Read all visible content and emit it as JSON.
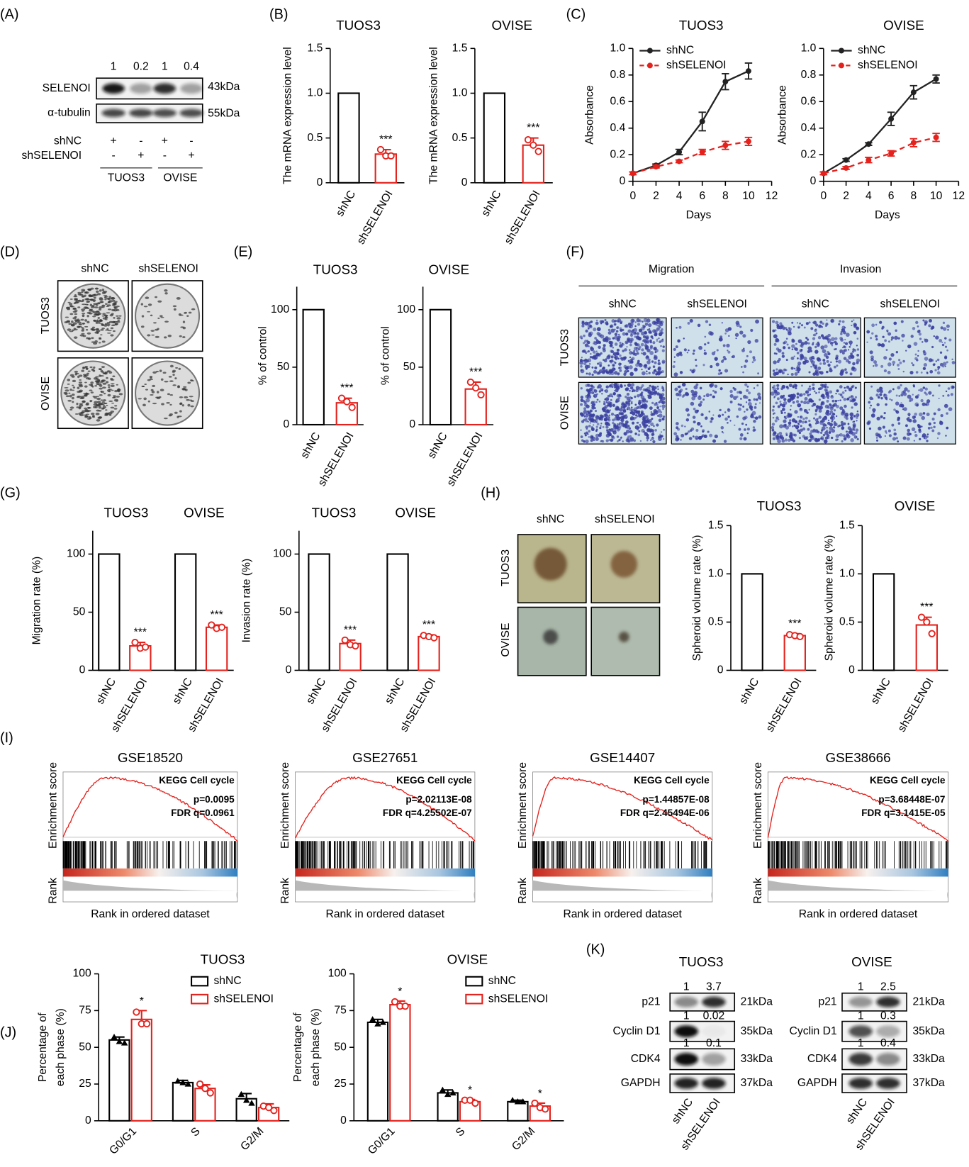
{
  "panel_a": {
    "label": "(A)",
    "quant": [
      1,
      0.2,
      1,
      0.4
    ],
    "proteins": [
      "SELENOI",
      "α-tubulin"
    ],
    "sizes": [
      "43kDa",
      "55kDa"
    ],
    "conditions": [
      {
        "name": "shNC",
        "signs": [
          "+",
          "-",
          "+",
          "-"
        ]
      },
      {
        "name": "shSELENOI",
        "signs": [
          "-",
          "+",
          "-",
          "+"
        ]
      }
    ],
    "cell_lines": [
      "TUOS3",
      "OVISE"
    ]
  },
  "panel_b": {
    "label": "(B)",
    "charts": [
      {
        "title": "TUOS3",
        "ylabel": "The mRNA expression level",
        "categories": [
          "shNC",
          "shSELENOI"
        ],
        "values": [
          1,
          0.32
        ],
        "errors": [
          null,
          0.05
        ],
        "points": [
          null,
          [
            0.37,
            0.3,
            0.3
          ]
        ],
        "colors": [
          "#000000",
          "#e4211c"
        ],
        "stars": [
          null,
          "***"
        ],
        "ylim": [
          0,
          1.5
        ],
        "yticks": [
          0,
          0.5,
          {
            "value": 1,
            "label": "1.0"
          },
          1.5
        ]
      },
      {
        "title": "OVISE",
        "ylabel": "The mRNA expression level",
        "categories": [
          "shNC",
          "shSELENOI"
        ],
        "values": [
          1,
          0.42
        ],
        "errors": [
          null,
          0.08
        ],
        "points": [
          null,
          [
            0.48,
            0.42,
            0.35
          ]
        ],
        "colors": [
          "#000000",
          "#e4211c"
        ],
        "stars": [
          null,
          "***"
        ],
        "ylim": [
          0,
          1.5
        ],
        "yticks": [
          0,
          0.5,
          {
            "value": 1,
            "label": "1.0"
          },
          1.5
        ]
      }
    ]
  },
  "panel_c": {
    "label": "(C)",
    "charts": [
      {
        "type": "line",
        "title": "TUOS3",
        "xlabel": "Days",
        "ylabel": "Absorbance",
        "x": [
          0,
          2,
          4,
          6,
          8,
          10
        ],
        "series": [
          {
            "name": "shNC",
            "color": "#222222",
            "dash": false,
            "values": [
              0.06,
              0.12,
              0.22,
              0.45,
              0.75,
              0.83
            ],
            "errors": [
              0.01,
              0.01,
              0.02,
              0.07,
              0.06,
              0.06
            ]
          },
          {
            "name": "shSELENOI",
            "color": "#e4211c",
            "dash": true,
            "values": [
              0.06,
              0.11,
              0.15,
              0.22,
              0.27,
              0.3
            ],
            "errors": [
              0.01,
              0.01,
              0.01,
              0.02,
              0.03,
              0.03
            ]
          }
        ],
        "xlim": [
          0,
          12
        ],
        "xticks": [
          0,
          2,
          4,
          6,
          8,
          10,
          12
        ],
        "ylim": [
          0,
          1
        ],
        "yticks": [
          0,
          0.2,
          0.4,
          0.6,
          0.8,
          {
            "value": 1,
            "label": "1.0"
          }
        ]
      },
      {
        "type": "line",
        "title": "OVISE",
        "xlabel": "Days",
        "ylabel": "Absorbance",
        "x": [
          0,
          2,
          4,
          6,
          8,
          10
        ],
        "series": [
          {
            "name": "shNC",
            "color": "#222222",
            "dash": false,
            "values": [
              0.06,
              0.16,
              0.28,
              0.47,
              0.67,
              0.77
            ],
            "errors": [
              0.01,
              0.01,
              0.01,
              0.05,
              0.05,
              0.03
            ]
          },
          {
            "name": "shSELENOI",
            "color": "#e4211c",
            "dash": true,
            "values": [
              0.06,
              0.1,
              0.16,
              0.21,
              0.29,
              0.33
            ],
            "errors": [
              0.01,
              0.01,
              0.02,
              0.02,
              0.03,
              0.03
            ]
          }
        ],
        "xlim": [
          0,
          12
        ],
        "xticks": [
          0,
          2,
          4,
          6,
          8,
          10,
          12
        ],
        "ylim": [
          0,
          1
        ],
        "yticks": [
          0,
          0.2,
          0.4,
          0.6,
          0.8,
          {
            "value": 1,
            "label": "1.0"
          }
        ]
      }
    ]
  },
  "panel_d": {
    "label": "(D)",
    "columns": [
      "shNC",
      "shSELENOI"
    ],
    "rows": [
      "TUOS3",
      "OVISE"
    ]
  },
  "panel_e": {
    "label": "(E)",
    "charts": [
      {
        "title": "TUOS3",
        "ylabel": "% of control",
        "categories": [
          "shNC",
          "shSELENOI"
        ],
        "values": [
          100,
          19
        ],
        "errors": [
          null,
          4
        ],
        "points": [
          null,
          [
            23,
            20,
            15
          ]
        ],
        "colors": [
          "#000000",
          "#e4211c"
        ],
        "stars": [
          null,
          "***"
        ],
        "ylim": [
          0,
          120
        ],
        "yticks": [
          0,
          50,
          100
        ]
      },
      {
        "title": "OVISE",
        "ylabel": "% of control",
        "categories": [
          "shNC",
          "shSELENOI"
        ],
        "values": [
          100,
          31
        ],
        "errors": [
          null,
          6
        ],
        "points": [
          null,
          [
            37,
            32,
            26
          ]
        ],
        "colors": [
          "#000000",
          "#e4211c"
        ],
        "stars": [
          null,
          "***"
        ],
        "ylim": [
          0,
          120
        ],
        "yticks": [
          0,
          50,
          100
        ]
      }
    ]
  },
  "panel_f": {
    "label": "(F)",
    "assays": [
      "Migration",
      "Invasion"
    ],
    "columns": [
      "shNC",
      "shSELENOI",
      "shNC",
      "shSELENOI"
    ],
    "rows": [
      "TUOS3",
      "OVISE"
    ]
  },
  "panel_g": {
    "label": "(G)",
    "charts": [
      {
        "groups": [
          "TUOS3",
          "OVISE"
        ],
        "ylabel": "Migration rate (%)",
        "categories": [
          "shNC",
          "shSELENOI",
          "shNC",
          "shSELENOI"
        ],
        "values": [
          100,
          21,
          100,
          37
        ],
        "errors": [
          null,
          3,
          null,
          2
        ],
        "points": [
          null,
          [
            24,
            19,
            20
          ],
          null,
          [
            39,
            36,
            37
          ]
        ],
        "colors": [
          "#000000",
          "#e4211c",
          "#000000",
          "#e4211c"
        ],
        "stars": [
          null,
          "***",
          null,
          "***"
        ],
        "ylim": [
          0,
          120
        ],
        "yticks": [
          0,
          50,
          100
        ]
      },
      {
        "groups": [
          "TUOS3",
          "OVISE"
        ],
        "ylabel": "Invasion rate (%)",
        "categories": [
          "shNC",
          "shSELENOI",
          "shNC",
          "shSELENOI"
        ],
        "values": [
          100,
          23,
          100,
          29
        ],
        "errors": [
          null,
          3,
          null,
          1.5
        ],
        "points": [
          null,
          [
            26,
            22,
            21
          ],
          null,
          [
            30,
            29,
            28
          ]
        ],
        "colors": [
          "#000000",
          "#e4211c",
          "#000000",
          "#e4211c"
        ],
        "stars": [
          null,
          "***",
          null,
          "***"
        ],
        "ylim": [
          0,
          120
        ],
        "yticks": [
          0,
          50,
          100
        ]
      }
    ]
  },
  "panel_h": {
    "label": "(H)",
    "columns": [
      "shNC",
      "shSELENOI"
    ],
    "rows": [
      "TUOS3",
      "OVISE"
    ],
    "charts": [
      {
        "title": "TUOS3",
        "ylabel": "Spheroid volume rate (%)",
        "categories": [
          "shNC",
          "shSELENOI"
        ],
        "values": [
          1,
          0.36
        ],
        "errors": [
          null,
          0.02
        ],
        "points": [
          null,
          [
            0.37,
            0.36,
            0.35
          ]
        ],
        "colors": [
          "#000000",
          "#e4211c"
        ],
        "stars": [
          null,
          "***"
        ],
        "ylim": [
          0,
          1.5
        ],
        "yticks": [
          0,
          0.5,
          {
            "value": 1,
            "label": "1.0"
          },
          1.5
        ]
      },
      {
        "title": "OVISE",
        "ylabel": "Spheroid volume rate (%)",
        "categories": [
          "shNC",
          "shSELENOI"
        ],
        "values": [
          1,
          0.47
        ],
        "errors": [
          null,
          0.08
        ],
        "points": [
          null,
          [
            0.55,
            0.5,
            0.38
          ]
        ],
        "colors": [
          "#000000",
          "#e4211c"
        ],
        "stars": [
          null,
          "***"
        ],
        "ylim": [
          0,
          1.5
        ],
        "yticks": [
          0,
          0.5,
          {
            "value": 1,
            "label": "1.0"
          },
          1.5
        ]
      }
    ]
  },
  "panel_i": {
    "label": "(I)",
    "plots": [
      {
        "title": "GSE18520",
        "pathway": "KEGG Cell cycle",
        "p": "p=0.0095",
        "fdr": "FDR q=0.0961",
        "ylabel_top": "Enrichment score",
        "ylabel_bottom": "Rank",
        "xlabel": "Rank in ordered dataset"
      },
      {
        "title": "GSE27651",
        "pathway": "KEGG Cell cycle",
        "p": "p=2.02113E-08",
        "fdr": "FDR q=4.25502E-07",
        "ylabel_top": "Enrichment score",
        "ylabel_bottom": "Rank",
        "xlabel": "Rank in ordered dataset"
      },
      {
        "title": "GSE14407",
        "pathway": "KEGG Cell cycle",
        "p": "p=1.44857E-08",
        "fdr": "FDR q=2.45494E-06",
        "ylabel_top": "Enrichment score",
        "ylabel_bottom": "Rank",
        "xlabel": "Rank in ordered dataset"
      },
      {
        "title": "GSE38666",
        "pathway": "KEGG Cell cycle",
        "p": "p=3.68448E-07",
        "fdr": "FDR q=3.1415E-05",
        "ylabel_top": "Enrichment score",
        "ylabel_bottom": "Rank",
        "xlabel": "Rank in ordered dataset"
      }
    ]
  },
  "panel_j": {
    "label": "(J)",
    "charts": [
      {
        "title": "TUOS3",
        "ylabel": [
          "Percentage of",
          "each phase (%)"
        ],
        "categories": [
          "G0/G1",
          "S",
          "G2/M"
        ],
        "series": [
          {
            "name": "shNC",
            "color": "#000000",
            "marker": "triangle",
            "values": [
              55,
              26,
              15
            ],
            "errors": [
              2,
              1.5,
              3.5
            ],
            "points": [
              [
                57,
                54,
                53
              ],
              [
                27,
                26,
                25
              ],
              [
                18,
                14,
                12
              ]
            ],
            "stars": [
              null,
              null,
              null
            ]
          },
          {
            "name": "shSELENOI",
            "color": "#e4211c",
            "marker": "circle",
            "values": [
              69,
              22,
              9
            ],
            "errors": [
              6,
              2.5,
              2.5
            ],
            "points": [
              [
                74,
                66,
                66
              ],
              [
                25,
                22,
                19
              ],
              [
                10,
                9,
                7
              ]
            ],
            "stars": [
              "*",
              null,
              null
            ]
          }
        ],
        "ylim": [
          0,
          100
        ],
        "yticks": [
          0,
          25,
          50,
          75,
          100
        ]
      },
      {
        "title": "OVISE",
        "ylabel": [
          "Percentage of",
          "each phase (%)"
        ],
        "categories": [
          "G0/G1",
          "S",
          "G2/M"
        ],
        "series": [
          {
            "name": "shNC",
            "color": "#000000",
            "marker": "triangle",
            "values": [
              67,
              19,
              13
            ],
            "errors": [
              2,
              2,
              1
            ],
            "points": [
              [
                69,
                66,
                67
              ],
              [
                21,
                18,
                19
              ],
              [
                14,
                13,
                13
              ]
            ],
            "stars": [
              null,
              null,
              null
            ]
          },
          {
            "name": "shSELENOI",
            "color": "#e4211c",
            "marker": "circle",
            "values": [
              79,
              13,
              10
            ],
            "errors": [
              2.5,
              1.5,
              2
            ],
            "points": [
              [
                81,
                78,
                78
              ],
              [
                14,
                14,
                12
              ],
              [
                12,
                9,
                8
              ]
            ],
            "stars": [
              "*",
              "*",
              "*"
            ]
          }
        ],
        "ylim": [
          0,
          100
        ],
        "yticks": [
          0,
          25,
          50,
          75,
          100
        ]
      }
    ]
  },
  "panel_k": {
    "label": "(K)",
    "blots": [
      {
        "title": "TUOS3",
        "proteins": [
          "p21",
          "Cyclin D1",
          "CDK4",
          "GAPDH"
        ],
        "sizes": [
          "21kDa",
          "35kDa",
          "33kDa",
          "37kDa"
        ],
        "quant": [
          [
            1,
            3.7
          ],
          [
            1,
            0.02
          ],
          [
            1,
            0.1
          ]
        ],
        "lanes": [
          "shNC",
          "shSELENOI"
        ]
      },
      {
        "title": "OVISE",
        "proteins": [
          "p21",
          "Cyclin D1",
          "CDK4",
          "GAPDH"
        ],
        "sizes": [
          "21kDa",
          "35kDa",
          "33kDa",
          "37kDa"
        ],
        "quant": [
          [
            1,
            2.5
          ],
          [
            1,
            0.3
          ],
          [
            1,
            0.4
          ]
        ],
        "lanes": [
          "shNC",
          "shSELENOI"
        ]
      }
    ]
  }
}
